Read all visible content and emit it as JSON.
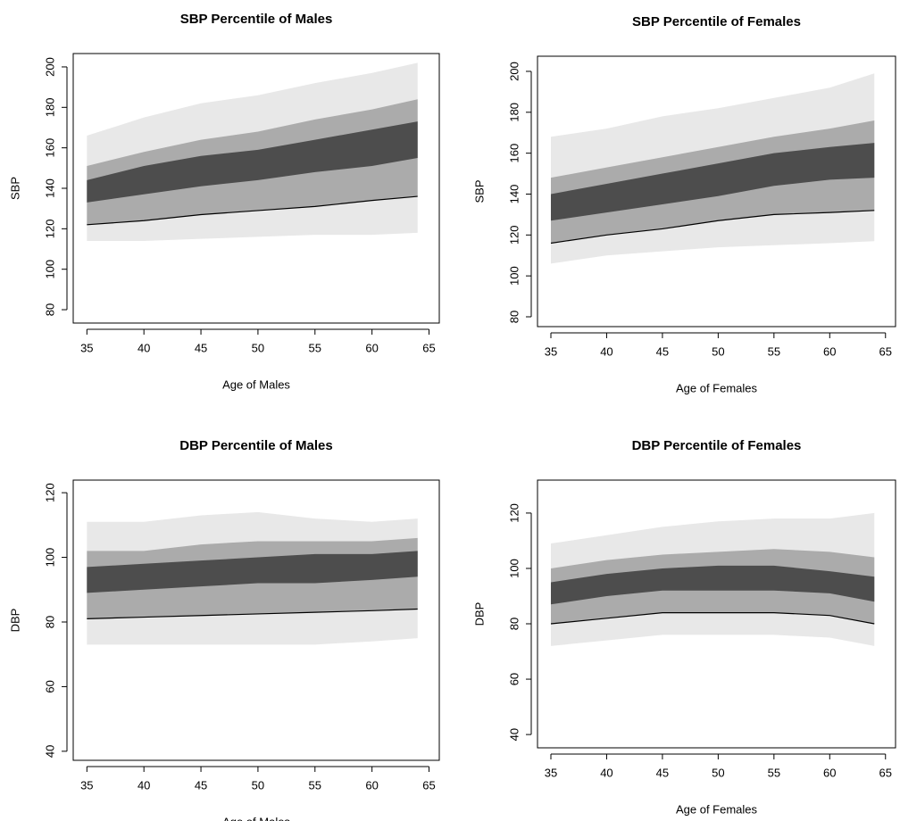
{
  "chart_data": [
    {
      "type": "band",
      "title": "SBP Percentile of Males",
      "xlabel": "Age of Males",
      "ylabel": "SBP",
      "x": [
        35,
        40,
        45,
        50,
        55,
        60,
        64
      ],
      "xlim": [
        33.8,
        65.9
      ],
      "ylim": [
        73.4,
        206.6
      ],
      "xticks": [
        35,
        40,
        45,
        50,
        55,
        60,
        65
      ],
      "yticks": [
        80,
        100,
        120,
        140,
        160,
        180,
        200
      ],
      "bands": [
        {
          "color": "#e8e8e8",
          "lower": [
            114,
            114,
            115,
            116,
            117,
            117,
            118
          ],
          "upper": [
            166,
            175,
            182,
            186,
            192,
            197,
            202
          ]
        },
        {
          "color": "#ababab",
          "lower": [
            122,
            124,
            127,
            129,
            131,
            134,
            136
          ],
          "upper": [
            151,
            158,
            164,
            168,
            174,
            179,
            184
          ]
        },
        {
          "color": "#4d4d4d",
          "lower": [
            133,
            137,
            141,
            144,
            148,
            151,
            155
          ],
          "upper": [
            144,
            151,
            156,
            159,
            164,
            169,
            173
          ]
        }
      ],
      "line": {
        "color": "#000000",
        "values": [
          122,
          124,
          127,
          129,
          131,
          134,
          136
        ]
      }
    },
    {
      "type": "band",
      "title": "SBP Percentile of Females",
      "xlabel": "Age of Females",
      "ylabel": "SBP",
      "x": [
        35,
        40,
        45,
        50,
        55,
        60,
        64
      ],
      "xlim": [
        33.8,
        65.9
      ],
      "ylim": [
        75.2,
        207.4
      ],
      "xticks": [
        35,
        40,
        45,
        50,
        55,
        60,
        65
      ],
      "yticks": [
        80,
        100,
        120,
        140,
        160,
        180,
        200
      ],
      "bands": [
        {
          "color": "#e8e8e8",
          "lower": [
            106,
            110,
            112,
            114,
            115,
            116,
            117
          ],
          "upper": [
            168,
            172,
            178,
            182,
            187,
            192,
            199
          ]
        },
        {
          "color": "#ababab",
          "lower": [
            116,
            120,
            123,
            127,
            130,
            131,
            132
          ],
          "upper": [
            148,
            153,
            158,
            163,
            168,
            172,
            176
          ]
        },
        {
          "color": "#4d4d4d",
          "lower": [
            127,
            131,
            135,
            139,
            144,
            147,
            148
          ],
          "upper": [
            140,
            145,
            150,
            155,
            160,
            163,
            165
          ]
        }
      ],
      "line": {
        "color": "#000000",
        "values": [
          116,
          120,
          123,
          127,
          130,
          131,
          132
        ]
      }
    },
    {
      "type": "band",
      "title": "DBP Percentile of Males",
      "xlabel": "Age of Males",
      "ylabel": "DBP",
      "x": [
        35,
        40,
        45,
        50,
        55,
        60,
        64
      ],
      "xlim": [
        33.8,
        65.9
      ],
      "ylim": [
        37.2,
        123.9
      ],
      "xticks": [
        35,
        40,
        45,
        50,
        55,
        60,
        65
      ],
      "yticks": [
        40,
        60,
        80,
        100,
        120
      ],
      "bands": [
        {
          "color": "#e8e8e8",
          "lower": [
            73,
            73,
            73,
            73,
            73,
            74,
            75
          ],
          "upper": [
            111,
            111,
            113,
            114,
            112,
            111,
            112
          ]
        },
        {
          "color": "#ababab",
          "lower": [
            81,
            81.5,
            82,
            82.5,
            83,
            83.5,
            84
          ],
          "upper": [
            102,
            102,
            104,
            105,
            105,
            105,
            106
          ]
        },
        {
          "color": "#4d4d4d",
          "lower": [
            89,
            90,
            91,
            92,
            92,
            93,
            94
          ],
          "upper": [
            97,
            98,
            99,
            100,
            101,
            101,
            102
          ]
        }
      ],
      "line": {
        "color": "#000000",
        "values": [
          81,
          81.5,
          82,
          82.5,
          83,
          83.5,
          84
        ]
      }
    },
    {
      "type": "band",
      "title": "DBP Percentile of Females",
      "xlabel": "Age of Females",
      "ylabel": "DBP",
      "x": [
        35,
        40,
        45,
        50,
        55,
        60,
        64
      ],
      "xlim": [
        33.8,
        65.9
      ],
      "ylim": [
        35.2,
        131.9
      ],
      "xticks": [
        35,
        40,
        45,
        50,
        55,
        60,
        65
      ],
      "yticks": [
        40,
        60,
        80,
        100,
        120
      ],
      "bands": [
        {
          "color": "#e8e8e8",
          "lower": [
            72,
            74,
            76,
            76,
            76,
            75,
            72
          ],
          "upper": [
            109,
            112,
            115,
            117,
            118,
            118,
            120
          ]
        },
        {
          "color": "#ababab",
          "lower": [
            80,
            82,
            84,
            84,
            84,
            83,
            80
          ],
          "upper": [
            100,
            103,
            105,
            106,
            107,
            106,
            104
          ]
        },
        {
          "color": "#4d4d4d",
          "lower": [
            87,
            90,
            92,
            92,
            92,
            91,
            88
          ],
          "upper": [
            95,
            98,
            100,
            101,
            101,
            99,
            97
          ]
        }
      ],
      "line": {
        "color": "#000000",
        "values": [
          80,
          82,
          84,
          84,
          84,
          83,
          80
        ]
      }
    }
  ]
}
